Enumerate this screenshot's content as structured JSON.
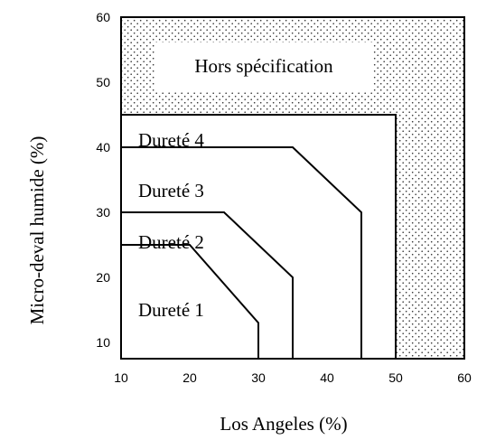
{
  "chart_data": {
    "type": "region-diagram",
    "xlabel": "Los Angeles (%)",
    "ylabel": "Micro-deval humide (%)",
    "xlim": [
      10,
      60
    ],
    "ylim": [
      7.5,
      60
    ],
    "x_ticks": [
      "10",
      "20",
      "30",
      "40",
      "50",
      "60"
    ],
    "y_ticks": [
      "10",
      "20",
      "30",
      "40",
      "50",
      "60"
    ],
    "regions": [
      {
        "label": "Dureté 1",
        "boundary": [
          [
            10,
            25
          ],
          [
            20,
            25
          ],
          [
            30,
            13
          ],
          [
            30,
            7.5
          ]
        ]
      },
      {
        "label": "Dureté 2",
        "boundary": [
          [
            10,
            30
          ],
          [
            25,
            30
          ],
          [
            35,
            20
          ],
          [
            35,
            7.5
          ]
        ]
      },
      {
        "label": "Dureté 3",
        "boundary": [
          [
            10,
            40
          ],
          [
            35,
            40
          ],
          [
            45,
            30
          ],
          [
            45,
            7.5
          ]
        ]
      },
      {
        "label": "Dureté 4",
        "boundary": [
          [
            10,
            45
          ],
          [
            50,
            45
          ],
          [
            50,
            7.5
          ]
        ]
      },
      {
        "label": "Hors spécification",
        "pattern": "dotted"
      }
    ]
  }
}
